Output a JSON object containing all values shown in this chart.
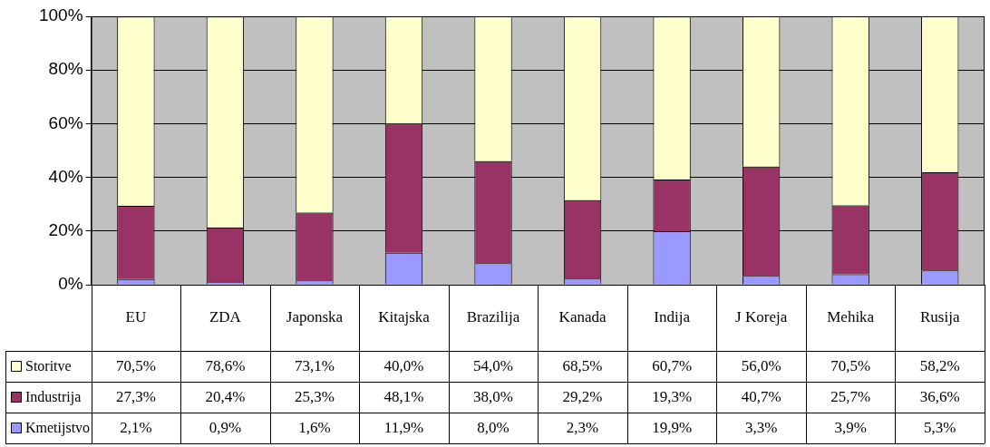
{
  "chart_data": {
    "type": "bar",
    "stacked": true,
    "categories": [
      "EU",
      "ZDA",
      "Japonska",
      "Kitajska",
      "Brazilija",
      "Kanada",
      "Indija",
      "J Koreja",
      "Mehika",
      "Rusija"
    ],
    "series": [
      {
        "name": "Kmetijstvo",
        "color": "#9999ff",
        "values": [
          2.1,
          0.9,
          1.6,
          11.9,
          8.0,
          2.3,
          19.9,
          3.3,
          3.9,
          5.3
        ],
        "value_labels": [
          "2,1%",
          "0,9%",
          "1,6%",
          "11,9%",
          "8,0%",
          "2,3%",
          "19,9%",
          "3,3%",
          "3,9%",
          "5,3%"
        ]
      },
      {
        "name": "Industrija",
        "color": "#993366",
        "values": [
          27.3,
          20.4,
          25.3,
          48.1,
          38.0,
          29.2,
          19.3,
          40.7,
          25.7,
          36.6
        ],
        "value_labels": [
          "27,3%",
          "20,4%",
          "25,3%",
          "48,1%",
          "38,0%",
          "29,2%",
          "19,3%",
          "40,7%",
          "25,7%",
          "36,6%"
        ]
      },
      {
        "name": "Storitve",
        "color": "#ffffcc",
        "values": [
          70.5,
          78.6,
          73.1,
          40.0,
          54.0,
          68.5,
          60.7,
          56.0,
          70.5,
          58.2
        ],
        "value_labels": [
          "70,5%",
          "78,6%",
          "73,1%",
          "40,0%",
          "54,0%",
          "68,5%",
          "60,7%",
          "56,0%",
          "70,5%",
          "58,2%"
        ]
      }
    ],
    "ylim": [
      0,
      100
    ],
    "yticks": [
      {
        "value": 0,
        "label": "0%"
      },
      {
        "value": 20,
        "label": "20%"
      },
      {
        "value": 40,
        "label": "40%"
      },
      {
        "value": 60,
        "label": "60%"
      },
      {
        "value": 80,
        "label": "80%"
      },
      {
        "value": 100,
        "label": "100%"
      }
    ],
    "grid": "y",
    "legend": "bottom"
  }
}
